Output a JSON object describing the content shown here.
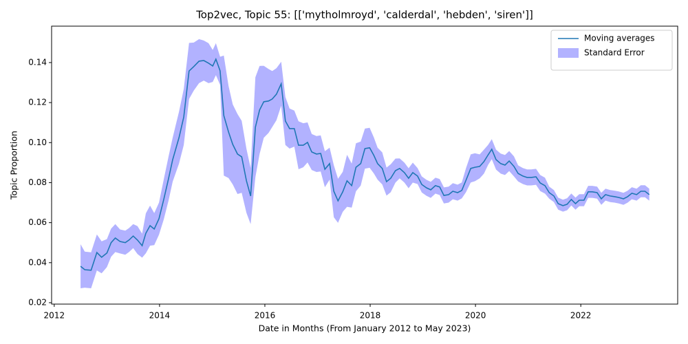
{
  "chart_data": {
    "type": "line",
    "title": "Top2vec, Topic 55: [['mytholmroyd', 'calderdal', 'hebden', 'siren']]",
    "xlabel": "Date in Months (From January 2012 to May 2023)",
    "ylabel": "Topic Proportion",
    "x": [
      2012.5,
      2012.58,
      2012.7,
      2012.81,
      2012.9,
      2013.0,
      2013.08,
      2013.16,
      2013.25,
      2013.35,
      2013.42,
      2013.5,
      2013.58,
      2013.67,
      2013.74,
      2013.82,
      2013.9,
      2013.99,
      2014.08,
      2014.17,
      2014.25,
      2014.37,
      2014.46,
      2014.56,
      2014.65,
      2014.75,
      2014.84,
      2014.93,
      2015.01,
      2015.07,
      2015.15,
      2015.22,
      2015.31,
      2015.39,
      2015.48,
      2015.56,
      2015.65,
      2015.73,
      2015.82,
      2015.9,
      2015.98,
      2016.07,
      2016.14,
      2016.22,
      2016.31,
      2016.39,
      2016.47,
      2016.56,
      2016.64,
      2016.73,
      2016.81,
      2016.89,
      2016.98,
      2017.06,
      2017.14,
      2017.23,
      2017.31,
      2017.39,
      2017.48,
      2017.56,
      2017.65,
      2017.73,
      2017.82,
      2017.9,
      2017.99,
      2018.07,
      2018.14,
      2018.23,
      2018.31,
      2018.39,
      2018.48,
      2018.56,
      2018.65,
      2018.73,
      2018.81,
      2018.9,
      2018.98,
      2019.07,
      2019.15,
      2019.24,
      2019.32,
      2019.4,
      2019.49,
      2019.57,
      2019.66,
      2019.74,
      2019.82,
      2019.91,
      2019.99,
      2020.08,
      2020.16,
      2020.24,
      2020.31,
      2020.39,
      2020.48,
      2020.56,
      2020.64,
      2020.73,
      2020.81,
      2020.9,
      2020.98,
      2021.06,
      2021.15,
      2021.23,
      2021.32,
      2021.4,
      2021.49,
      2021.57,
      2021.66,
      2021.74,
      2021.82,
      2021.9,
      2021.97,
      2022.06,
      2022.14,
      2022.22,
      2022.31,
      2022.39,
      2022.47,
      2022.56,
      2022.64,
      2022.72,
      2022.81,
      2022.89,
      2022.97,
      2023.06,
      2023.14,
      2023.22,
      2023.3
    ],
    "series": [
      {
        "name": "Moving averages",
        "color": "#1f77b4",
        "values": [
          0.0382,
          0.0365,
          0.0362,
          0.0451,
          0.0427,
          0.0448,
          0.05,
          0.0523,
          0.0506,
          0.05,
          0.0513,
          0.0533,
          0.0513,
          0.0485,
          0.0547,
          0.0585,
          0.0568,
          0.062,
          0.0716,
          0.0819,
          0.0915,
          0.1025,
          0.1128,
          0.1358,
          0.138,
          0.1407,
          0.141,
          0.1397,
          0.1383,
          0.1417,
          0.1359,
          0.1135,
          0.1053,
          0.0991,
          0.0943,
          0.0929,
          0.0809,
          0.0733,
          0.1077,
          0.1163,
          0.1204,
          0.1208,
          0.1218,
          0.1242,
          0.1294,
          0.1108,
          0.107,
          0.107,
          0.0987,
          0.0987,
          0.1001,
          0.0953,
          0.0943,
          0.0946,
          0.0867,
          0.0895,
          0.0757,
          0.0709,
          0.0754,
          0.0809,
          0.0785,
          0.0877,
          0.0895,
          0.097,
          0.0974,
          0.0936,
          0.0895,
          0.0871,
          0.0805,
          0.0822,
          0.086,
          0.0871,
          0.085,
          0.0822,
          0.085,
          0.0833,
          0.0791,
          0.0774,
          0.0764,
          0.0785,
          0.0778,
          0.0736,
          0.074,
          0.0757,
          0.075,
          0.0761,
          0.0812,
          0.0871,
          0.0877,
          0.0881,
          0.0905,
          0.0939,
          0.0967,
          0.0915,
          0.0895,
          0.0888,
          0.0908,
          0.0881,
          0.0846,
          0.0833,
          0.0826,
          0.0826,
          0.0829,
          0.0798,
          0.0785,
          0.075,
          0.0733,
          0.0695,
          0.0685,
          0.0692,
          0.0716,
          0.0695,
          0.0712,
          0.0712,
          0.0754,
          0.0754,
          0.075,
          0.0719,
          0.074,
          0.0733,
          0.073,
          0.0726,
          0.0719,
          0.073,
          0.0747,
          0.074,
          0.0757,
          0.0757,
          0.074
        ]
      },
      {
        "name": "Standard Error",
        "color": "#0000ff",
        "kind": "band",
        "errors": [
          0.011,
          0.009,
          0.009,
          0.009,
          0.008,
          0.007,
          0.007,
          0.007,
          0.006,
          0.006,
          0.006,
          0.006,
          0.007,
          0.006,
          0.01,
          0.01,
          0.008,
          0.008,
          0.01,
          0.011,
          0.011,
          0.013,
          0.014,
          0.014,
          0.012,
          0.011,
          0.01,
          0.01,
          0.008,
          0.008,
          0.007,
          0.03,
          0.023,
          0.02,
          0.02,
          0.018,
          0.016,
          0.014,
          0.025,
          0.022,
          0.018,
          0.016,
          0.014,
          0.013,
          0.011,
          0.012,
          0.01,
          0.009,
          0.012,
          0.011,
          0.01,
          0.009,
          0.009,
          0.009,
          0.009,
          0.008,
          0.013,
          0.011,
          0.01,
          0.013,
          0.011,
          0.012,
          0.011,
          0.01,
          0.01,
          0.009,
          0.008,
          0.008,
          0.007,
          0.007,
          0.006,
          0.005,
          0.005,
          0.005,
          0.005,
          0.004,
          0.004,
          0.004,
          0.004,
          0.004,
          0.004,
          0.004,
          0.004,
          0.004,
          0.004,
          0.004,
          0.006,
          0.007,
          0.007,
          0.006,
          0.006,
          0.005,
          0.005,
          0.005,
          0.005,
          0.005,
          0.005,
          0.005,
          0.004,
          0.004,
          0.004,
          0.004,
          0.004,
          0.004,
          0.004,
          0.003,
          0.003,
          0.003,
          0.003,
          0.003,
          0.003,
          0.003,
          0.003,
          0.003,
          0.003,
          0.003,
          0.003,
          0.003,
          0.003,
          0.003,
          0.003,
          0.003,
          0.003,
          0.003,
          0.003,
          0.003,
          0.003,
          0.003,
          0.003
        ]
      }
    ],
    "xlim": [
      2011.95,
      2023.84
    ],
    "ylim": [
      0.0193,
      0.1582
    ],
    "xticks": [
      2012,
      2014,
      2016,
      2018,
      2020,
      2022
    ],
    "yticks": [
      0.02,
      0.04,
      0.06,
      0.08,
      {
        "value": 0.1,
        "label": "0.10"
      },
      0.12,
      0.14
    ],
    "legend": "upper right"
  }
}
